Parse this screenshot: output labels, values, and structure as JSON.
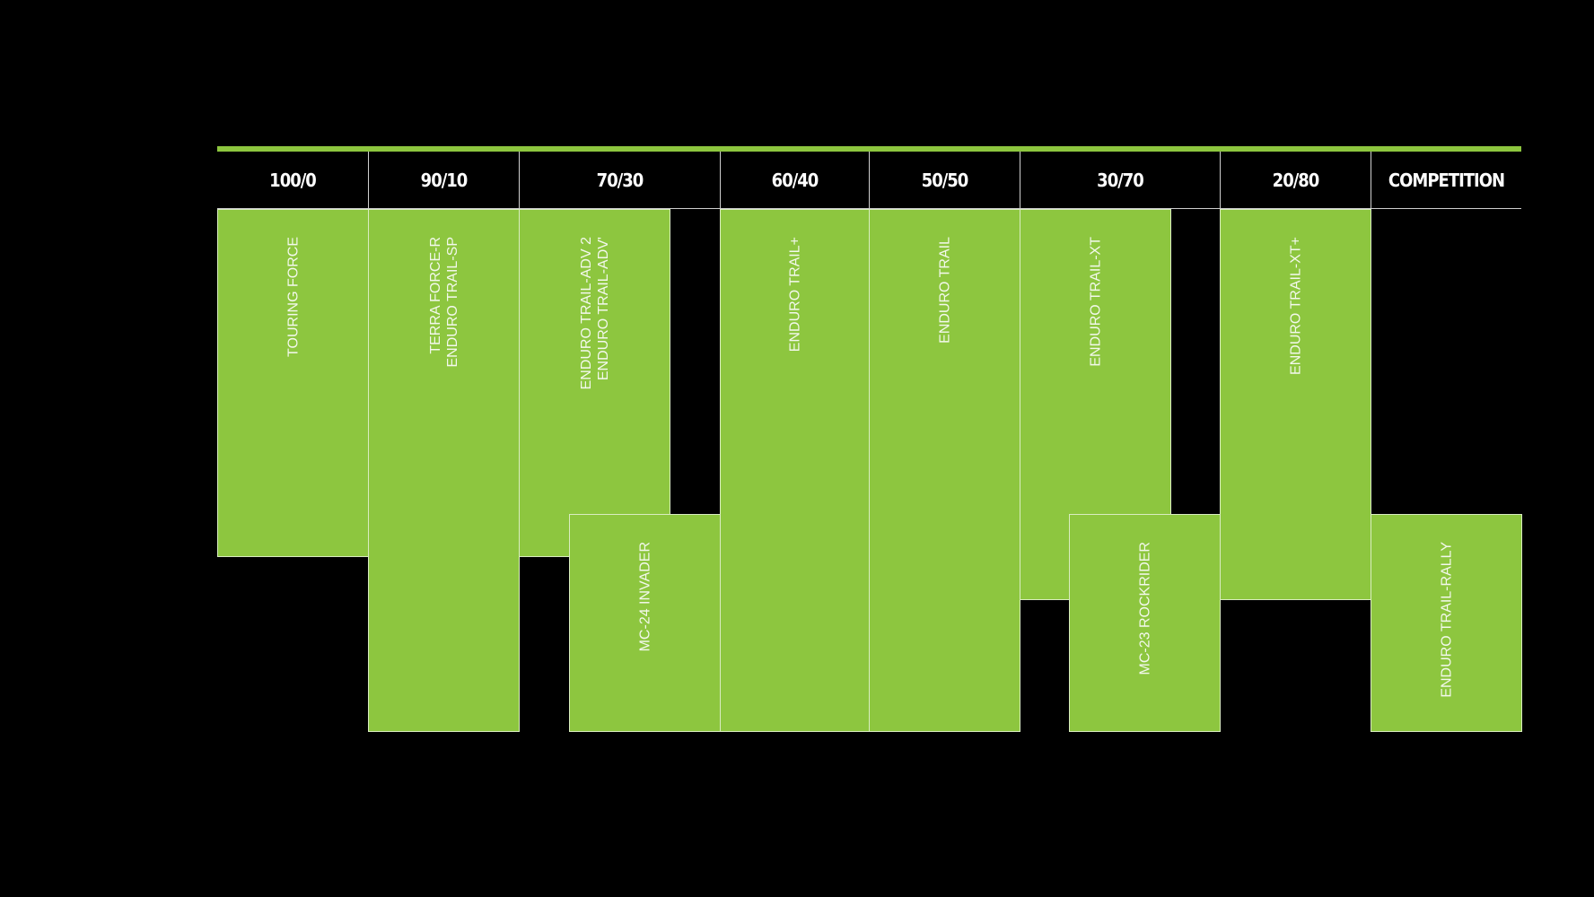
{
  "colors": {
    "accent": "#8dc63f",
    "background": "#000000",
    "text": "#ffffff"
  },
  "columns": [
    "100/0",
    "90/10",
    "70/30",
    "60/40",
    "50/50",
    "30/70",
    "20/80",
    "COMPETITION"
  ],
  "blocks": [
    {
      "lines": [
        "TOURING FORCE"
      ]
    },
    {
      "lines": [
        "TERRA FORCE-R",
        "ENDURO TRAIL-SP"
      ]
    },
    {
      "lines": [
        "ENDURO TRAIL-ADV 2",
        "ENDURO TRAIL-ADV'"
      ]
    },
    {
      "lines": [
        "MC-24 INVADER"
      ]
    },
    {
      "lines": [
        "ENDURO TRAIL+"
      ]
    },
    {
      "lines": [
        "ENDURO TRAIL"
      ]
    },
    {
      "lines": [
        "ENDURO TRAIL-XT"
      ]
    },
    {
      "lines": [
        "MC-23 ROCKRIDER"
      ]
    },
    {
      "lines": [
        "ENDURO TRAIL-XT+"
      ]
    },
    {
      "lines": [
        "ENDURO TRAIL-RALLY"
      ]
    }
  ]
}
